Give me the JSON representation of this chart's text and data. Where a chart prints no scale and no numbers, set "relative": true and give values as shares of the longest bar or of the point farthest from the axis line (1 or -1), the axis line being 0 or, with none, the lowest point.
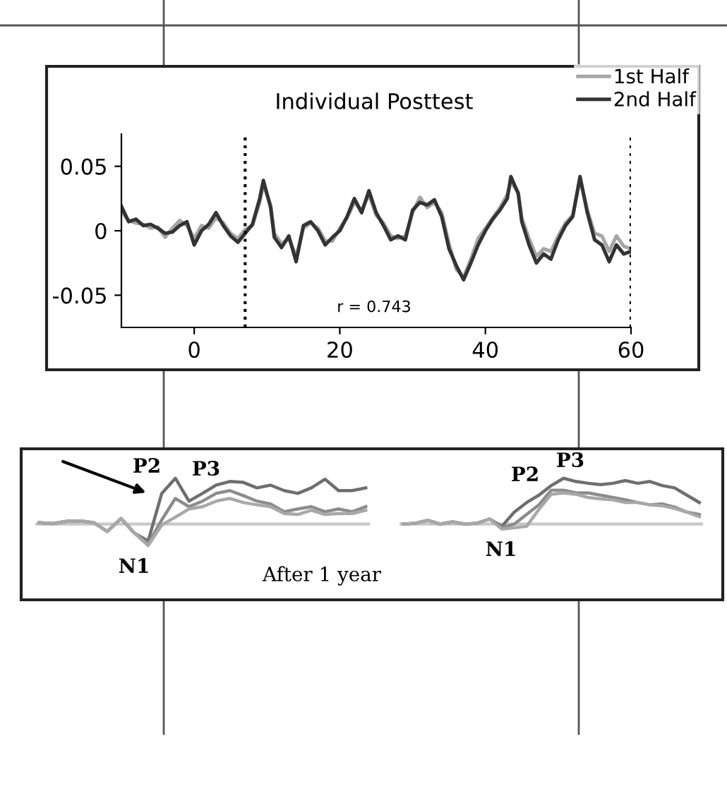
{
  "chart_data": [
    {
      "type": "line",
      "title": "Individual Posttest",
      "xlim": [
        -10,
        60
      ],
      "ylim": [
        -0.075,
        0.075
      ],
      "xticks": [
        0,
        20,
        40,
        60
      ],
      "yticks": [
        -0.05,
        0,
        0.05
      ],
      "legend": "top right",
      "grid": false,
      "x": [
        -10,
        -9,
        -8,
        -7,
        -6,
        -5,
        -4,
        -3,
        -2,
        -1,
        0,
        1,
        2,
        3,
        4,
        5,
        6,
        7,
        8,
        9,
        9.5,
        10.5,
        11,
        12,
        13,
        14,
        15,
        16,
        17,
        18,
        19,
        20,
        21,
        22,
        23,
        24,
        25,
        26,
        27,
        28,
        29,
        30,
        31,
        32,
        33,
        34,
        35,
        36,
        37,
        38,
        39,
        40,
        41,
        42,
        43,
        43.5,
        44.5,
        45,
        46,
        47,
        48,
        49,
        50,
        51,
        52,
        53,
        54,
        55,
        56,
        57,
        58,
        59,
        60
      ],
      "series": [
        {
          "name": "1st Half",
          "color": "#a6a6a6",
          "values": [
            0.015,
            0.008,
            0.006,
            0.005,
            0.002,
            0.003,
            -0.005,
            0.002,
            0.008,
            0.004,
            -0.006,
            0.004,
            0.002,
            0.01,
            0.006,
            -0.002,
            -0.006,
            0.001,
            0.004,
            0.022,
            0.036,
            0.02,
            -0.002,
            -0.01,
            -0.006,
            -0.02,
            0.002,
            0.006,
            0.002,
            -0.008,
            -0.008,
            0.002,
            0.01,
            0.022,
            0.016,
            0.028,
            0.012,
            0.006,
            -0.004,
            -0.006,
            -0.004,
            0.014,
            0.026,
            0.018,
            0.022,
            0.014,
            -0.01,
            -0.03,
            -0.036,
            -0.022,
            -0.006,
            0.002,
            0.01,
            0.018,
            0.028,
            0.038,
            0.03,
            0.01,
            -0.006,
            -0.02,
            -0.014,
            -0.016,
            -0.004,
            0.006,
            0.012,
            0.04,
            0.016,
            -0.002,
            -0.004,
            -0.016,
            -0.004,
            -0.012,
            -0.014
          ]
        },
        {
          "name": "2nd Half",
          "color": "#333333",
          "values": [
            0.019,
            0.007,
            0.009,
            0.004,
            0.005,
            0.002,
            -0.002,
            -0.001,
            0.004,
            0.007,
            -0.011,
            0,
            0.005,
            0.014,
            0.004,
            -0.004,
            -0.009,
            -0.002,
            0.005,
            0.025,
            0.039,
            0.018,
            -0.005,
            -0.013,
            -0.004,
            -0.024,
            0.004,
            0.007,
            0,
            -0.011,
            -0.005,
            0,
            0.011,
            0.025,
            0.014,
            0.031,
            0.014,
            0.004,
            -0.007,
            -0.004,
            -0.007,
            0.016,
            0.022,
            0.02,
            0.024,
            0.011,
            -0.014,
            -0.027,
            -0.038,
            -0.025,
            -0.011,
            0,
            0.009,
            0.016,
            0.025,
            0.042,
            0.029,
            0.007,
            -0.011,
            -0.025,
            -0.018,
            -0.022,
            -0.007,
            0.004,
            0.011,
            0.042,
            0.014,
            -0.007,
            -0.011,
            -0.024,
            -0.011,
            -0.018,
            -0.016
          ]
        }
      ],
      "ref_lines": [
        {
          "axis": "x",
          "value": 7,
          "color": "#000000",
          "line_style": "dotted"
        },
        {
          "axis": "x",
          "value": 60,
          "color": "#000000",
          "line_style": "dotted"
        }
      ],
      "annotations": [
        "r = 0.743"
      ]
    },
    {
      "type": "line",
      "relative": true,
      "categories": [
        null,
        null,
        null,
        null,
        null,
        null,
        null,
        null,
        null,
        null,
        null,
        null,
        null,
        null,
        null,
        null,
        null,
        null,
        null,
        null,
        null,
        null,
        null,
        null,
        null
      ],
      "series": [
        {
          "color": "#6e6e6e",
          "values": [
            0.03,
            0.01,
            0.06,
            0.07,
            0.03,
            -0.16,
            0.12,
            -0.2,
            -0.37,
            0.67,
            1.0,
            0.5,
            0.67,
            0.85,
            0.93,
            0.91,
            0.79,
            0.85,
            0.73,
            0.67,
            0.79,
            0.98,
            0.73,
            0.73,
            0.79
          ]
        },
        {
          "color": "#8c8c8c",
          "values": [
            0.03,
            0.01,
            0.06,
            0.07,
            0.03,
            -0.16,
            0.12,
            -0.2,
            -0.43,
            0.09,
            0.56,
            0.38,
            0.5,
            0.67,
            0.73,
            0.62,
            0.5,
            0.44,
            0.27,
            0.33,
            0.38,
            0.27,
            0.33,
            0.27,
            0.38
          ]
        },
        {
          "color": "#a8a8a8",
          "values": [
            0.03,
            0.01,
            0.06,
            0.07,
            0.03,
            -0.16,
            0.12,
            -0.2,
            -0.47,
            -0.02,
            0.15,
            0.33,
            0.38,
            0.5,
            0.56,
            0.47,
            0.42,
            0.38,
            0.23,
            0.21,
            0.3,
            0.21,
            0.23,
            0.23,
            0.3
          ]
        }
      ],
      "annotations": [
        "P2",
        "P3",
        "N1",
        "After 1 year"
      ]
    },
    {
      "type": "line",
      "relative": true,
      "categories": [
        null,
        null,
        null,
        null,
        null,
        null,
        null,
        null,
        null,
        null,
        null,
        null,
        null,
        null,
        null,
        null,
        null,
        null,
        null,
        null,
        null,
        null,
        null,
        null,
        null
      ],
      "series": [
        {
          "color": "#6e6e6e",
          "values": [
            0,
            0.02,
            0.08,
            0,
            0.05,
            0,
            0.02,
            0.11,
            -0.05,
            0.26,
            0.47,
            0.63,
            0.84,
            1.0,
            0.93,
            0.89,
            0.86,
            0.89,
            0.95,
            0.89,
            0.93,
            0.84,
            0.79,
            0.63,
            0.47
          ]
        },
        {
          "color": "#8c8c8c",
          "values": [
            0,
            0.02,
            0.08,
            0,
            0.05,
            0,
            0.02,
            0.11,
            -0.08,
            0,
            0.21,
            0.42,
            0.74,
            0.74,
            0.68,
            0.68,
            0.63,
            0.58,
            0.53,
            0.47,
            0.42,
            0.44,
            0.37,
            0.26,
            0.21
          ]
        },
        {
          "color": "#a8a8a8",
          "values": [
            0,
            0.02,
            0.08,
            0,
            0.05,
            0,
            0.02,
            0.11,
            -0.11,
            -0.08,
            -0.05,
            0.32,
            0.65,
            0.68,
            0.65,
            0.58,
            0.55,
            0.53,
            0.47,
            0.47,
            0.42,
            0.4,
            0.34,
            0.26,
            0.16
          ]
        }
      ],
      "annotations": [
        "P2",
        "P3",
        "N1"
      ]
    }
  ]
}
